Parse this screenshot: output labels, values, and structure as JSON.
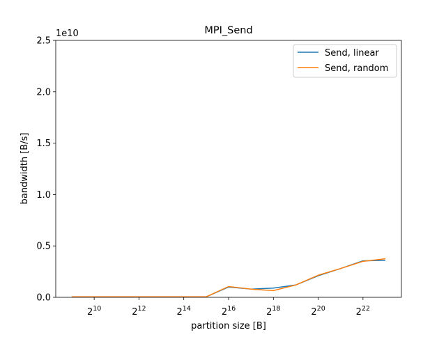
{
  "chart_data": {
    "type": "line",
    "title": "MPI_Send",
    "xlabel": "partition size [B]",
    "ylabel": "bandwidth [B/s]",
    "y_offset_label": "1e10",
    "x_scale": "log2",
    "x_tick_labels": [
      {
        "base": "2",
        "exp": "10"
      },
      {
        "base": "2",
        "exp": "12"
      },
      {
        "base": "2",
        "exp": "14"
      },
      {
        "base": "2",
        "exp": "16"
      },
      {
        "base": "2",
        "exp": "18"
      },
      {
        "base": "2",
        "exp": "20"
      },
      {
        "base": "2",
        "exp": "22"
      }
    ],
    "y_tick_labels": [
      "0.0",
      "0.5",
      "1.0",
      "1.5",
      "2.0",
      "2.5"
    ],
    "ylim": [
      0,
      25000000000.0
    ],
    "grid": false,
    "legend_position": "top-right",
    "x": [
      512,
      1024,
      2048,
      4096,
      8192,
      16384,
      32768,
      65536,
      131072,
      262144,
      524288,
      1048576,
      2097152,
      4194304,
      8388608
    ],
    "series": [
      {
        "name": "Send, linear",
        "color": "#1f77b4",
        "values": [
          50000000.0,
          50000000.0,
          50000000.0,
          50000000.0,
          50000000.0,
          50000000.0,
          50000000.0,
          1000000000.0,
          800000000.0,
          900000000.0,
          1200000000.0,
          2100000000.0,
          2800000000.0,
          3550000000.0,
          3600000000.0
        ]
      },
      {
        "name": "Send, random",
        "color": "#ff7f0e",
        "values": [
          50000000.0,
          50000000.0,
          50000000.0,
          50000000.0,
          50000000.0,
          50000000.0,
          50000000.0,
          1050000000.0,
          800000000.0,
          650000000.0,
          1200000000.0,
          2150000000.0,
          2800000000.0,
          3500000000.0,
          3750000000.0
        ]
      }
    ]
  }
}
